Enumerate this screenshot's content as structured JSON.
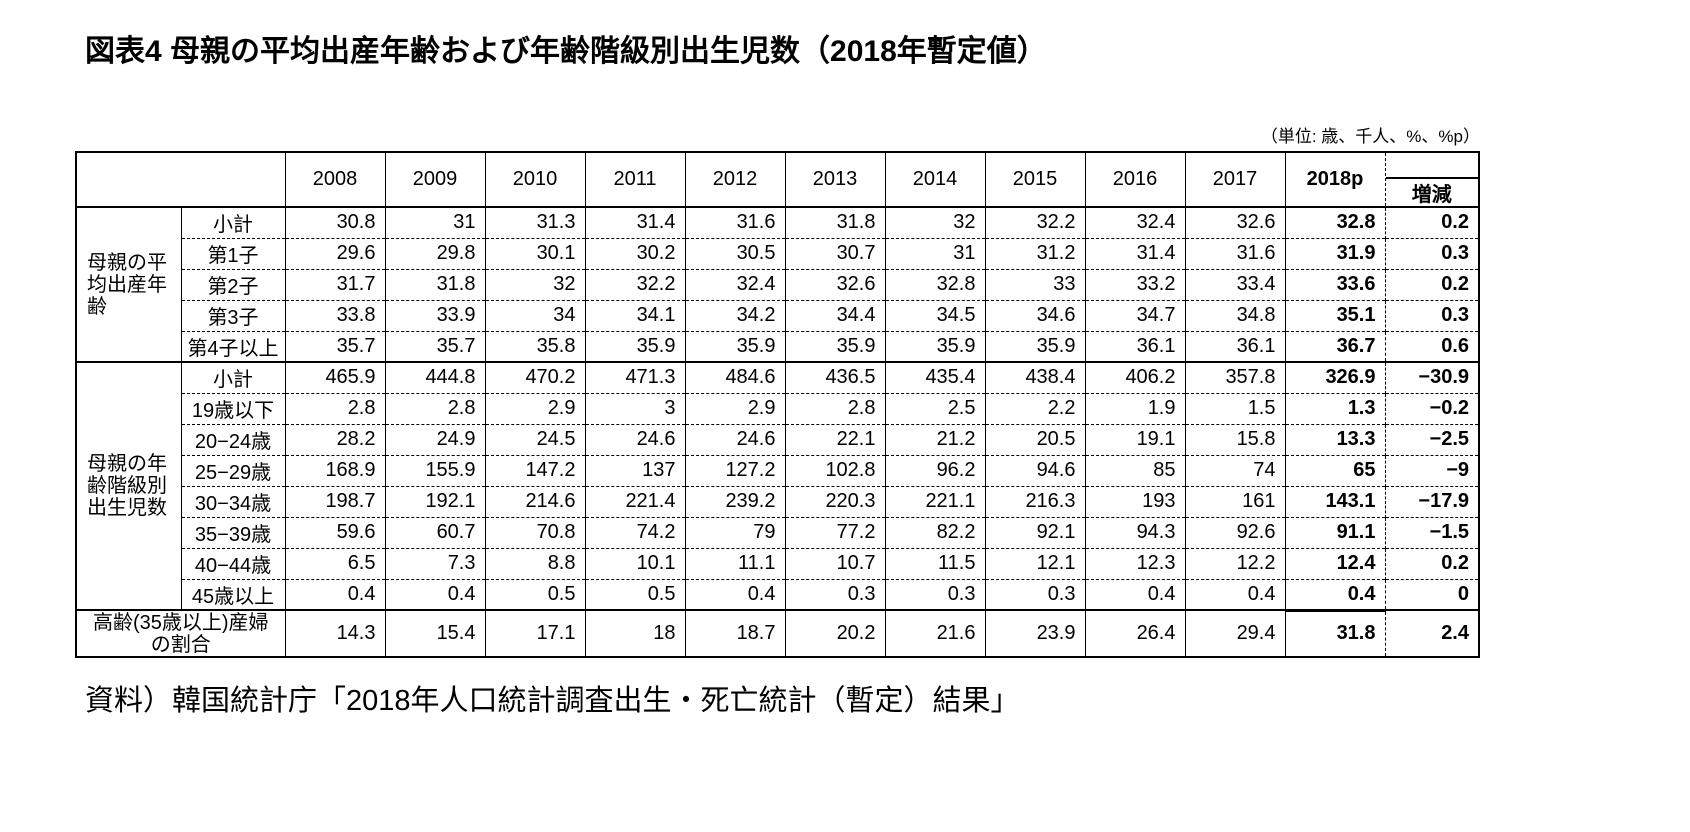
{
  "page": {
    "title": "図表4 母親の平均出産年齢および年齢階級別出生児数（2018年暫定値）",
    "unit_note": "（単位: 歳、千人、%、%p）",
    "source_note": "資料）韓国統計庁「2018年人口統計調査出生・死亡統計（暫定）結果」"
  },
  "chart_data": {
    "type": "table",
    "columns": [
      "2008",
      "2009",
      "2010",
      "2011",
      "2012",
      "2013",
      "2014",
      "2015",
      "2016",
      "2017",
      "2018p",
      "増減"
    ],
    "groups": [
      {
        "label": "母親の平均出産年齢",
        "rows": [
          {
            "label": "小計",
            "values": [
              "30.8",
              "31",
              "31.3",
              "31.4",
              "31.6",
              "31.8",
              "32",
              "32.2",
              "32.4",
              "32.6",
              "32.8",
              "0.2"
            ]
          },
          {
            "label": "第1子",
            "values": [
              "29.6",
              "29.8",
              "30.1",
              "30.2",
              "30.5",
              "30.7",
              "31",
              "31.2",
              "31.4",
              "31.6",
              "31.9",
              "0.3"
            ]
          },
          {
            "label": "第2子",
            "values": [
              "31.7",
              "31.8",
              "32",
              "32.2",
              "32.4",
              "32.6",
              "32.8",
              "33",
              "33.2",
              "33.4",
              "33.6",
              "0.2"
            ]
          },
          {
            "label": "第3子",
            "values": [
              "33.8",
              "33.9",
              "34",
              "34.1",
              "34.2",
              "34.4",
              "34.5",
              "34.6",
              "34.7",
              "34.8",
              "35.1",
              "0.3"
            ]
          },
          {
            "label": "第4子以上",
            "values": [
              "35.7",
              "35.7",
              "35.8",
              "35.9",
              "35.9",
              "35.9",
              "35.9",
              "35.9",
              "36.1",
              "36.1",
              "36.7",
              "0.6"
            ]
          }
        ]
      },
      {
        "label": "母親の年齢階級別出生児数",
        "rows": [
          {
            "label": "小計",
            "values": [
              "465.9",
              "444.8",
              "470.2",
              "471.3",
              "484.6",
              "436.5",
              "435.4",
              "438.4",
              "406.2",
              "357.8",
              "326.9",
              "−30.9"
            ]
          },
          {
            "label": "19歳以下",
            "values": [
              "2.8",
              "2.8",
              "2.9",
              "3",
              "2.9",
              "2.8",
              "2.5",
              "2.2",
              "1.9",
              "1.5",
              "1.3",
              "−0.2"
            ]
          },
          {
            "label": "20−24歳",
            "values": [
              "28.2",
              "24.9",
              "24.5",
              "24.6",
              "24.6",
              "22.1",
              "21.2",
              "20.5",
              "19.1",
              "15.8",
              "13.3",
              "−2.5"
            ]
          },
          {
            "label": "25−29歳",
            "values": [
              "168.9",
              "155.9",
              "147.2",
              "137",
              "127.2",
              "102.8",
              "96.2",
              "94.6",
              "85",
              "74",
              "65",
              "−9"
            ]
          },
          {
            "label": "30−34歳",
            "values": [
              "198.7",
              "192.1",
              "214.6",
              "221.4",
              "239.2",
              "220.3",
              "221.1",
              "216.3",
              "193",
              "161",
              "143.1",
              "−17.9"
            ]
          },
          {
            "label": "35−39歳",
            "values": [
              "59.6",
              "60.7",
              "70.8",
              "74.2",
              "79",
              "77.2",
              "82.2",
              "92.1",
              "94.3",
              "92.6",
              "91.1",
              "−1.5"
            ]
          },
          {
            "label": "40−44歳",
            "values": [
              "6.5",
              "7.3",
              "8.8",
              "10.1",
              "11.1",
              "10.7",
              "11.5",
              "12.1",
              "12.3",
              "12.2",
              "12.4",
              "0.2"
            ]
          },
          {
            "label": "45歳以上",
            "values": [
              "0.4",
              "0.4",
              "0.5",
              "0.5",
              "0.4",
              "0.3",
              "0.3",
              "0.3",
              "0.4",
              "0.4",
              "0.4",
              "0"
            ]
          }
        ]
      },
      {
        "label": "高齢(35歳以上)産婦の割合",
        "rows": [
          {
            "label": null,
            "values": [
              "14.3",
              "15.4",
              "17.1",
              "18",
              "18.7",
              "20.2",
              "21.6",
              "23.9",
              "26.4",
              "29.4",
              "31.8",
              "2.4"
            ]
          }
        ]
      }
    ]
  }
}
